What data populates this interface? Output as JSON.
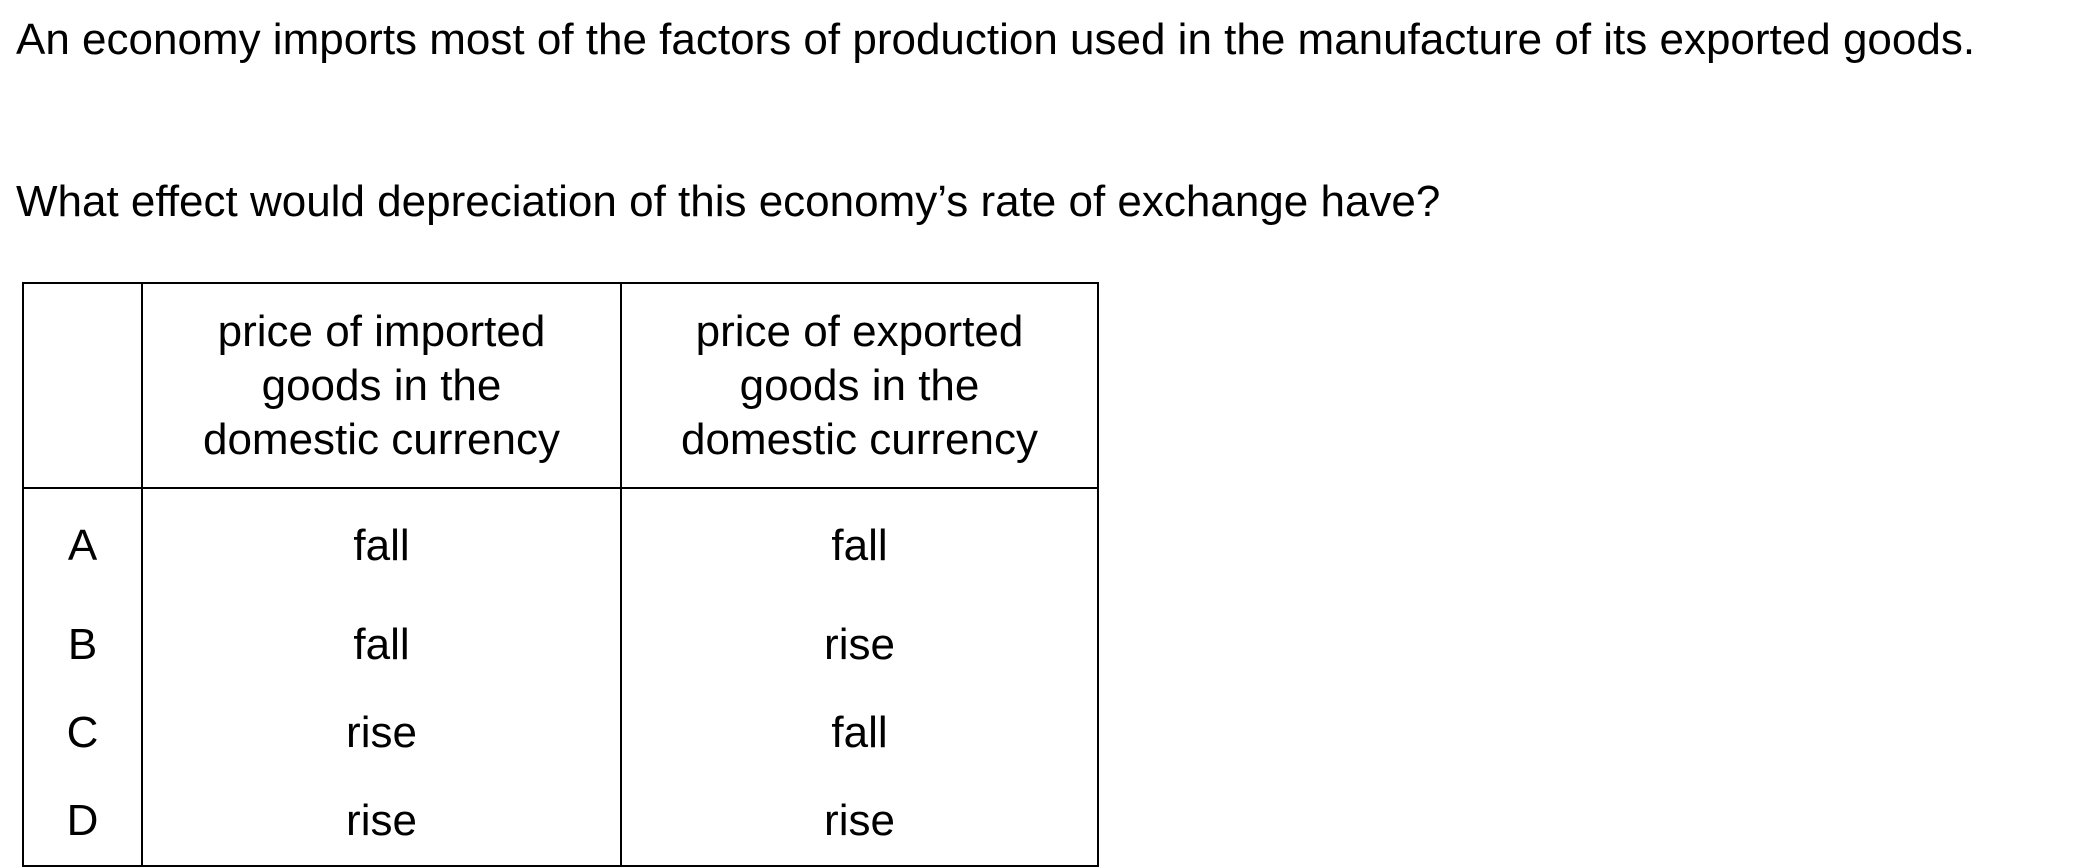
{
  "question": {
    "stem": "An economy imports most of the factors of production used in the manufacture of its exported goods.",
    "prompt": "What effect would depreciation of this economy’s rate of exchange have?"
  },
  "table": {
    "headers": {
      "letter": "",
      "imported": "price of imported\ngoods in the\ndomestic currency",
      "exported": "price of exported\ngoods in the\ndomestic currency"
    },
    "rows": [
      {
        "letter": "A",
        "imported": "fall",
        "exported": "fall"
      },
      {
        "letter": "B",
        "imported": "fall",
        "exported": "rise"
      },
      {
        "letter": "C",
        "imported": "rise",
        "exported": "fall"
      },
      {
        "letter": "D",
        "imported": "rise",
        "exported": "rise"
      }
    ]
  }
}
